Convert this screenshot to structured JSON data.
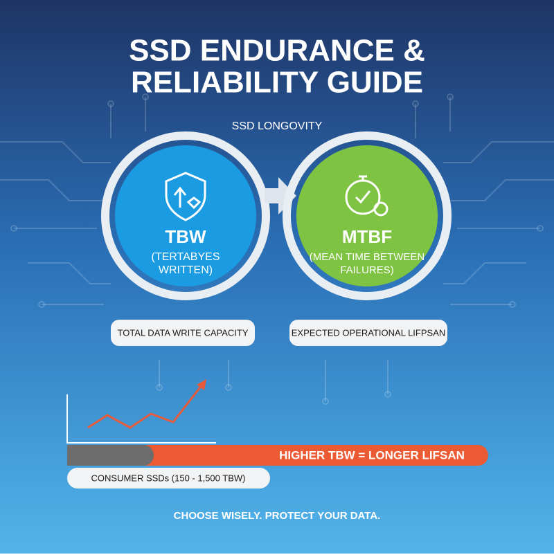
{
  "header": {
    "title_lines": [
      "SSD ENDURANCE &",
      "RELIABILITY GUIDE"
    ],
    "subtitle": "SSD LONGOVITY"
  },
  "cards": [
    {
      "acronym": "TBW",
      "expansion_lines": [
        "(TERTABYES",
        "WRITTEN)"
      ],
      "caption": "TOTAL DATA WRITE CAPACITY"
    },
    {
      "acronym": "MTBF",
      "expansion_lines": [
        "(MEAN TIME BETWEEN",
        "FAILURES)"
      ],
      "caption": "EXPECTED OPERATIONAL LIFPSAN"
    }
  ],
  "bar": {
    "label": "HIGHER TBW = LONGER LIFSAN",
    "range_label": "CONSUMER SSDs (150 - 1,500 TBW)"
  },
  "footer": "CHOOSE WISELY. PROTECT YOUR DATA."
}
